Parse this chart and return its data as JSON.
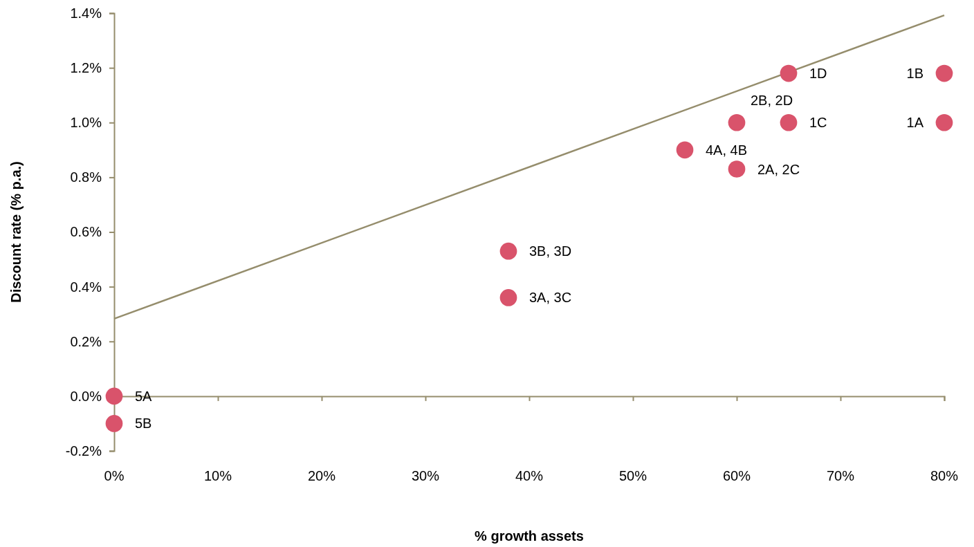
{
  "chart_data": {
    "type": "scatter",
    "xlabel": "% growth assets",
    "ylabel": "Discount rate (% p.a.)",
    "xlim": [
      0,
      80
    ],
    "ylim": [
      -0.2,
      1.4
    ],
    "xticks": [
      {
        "value": 0,
        "label": "0%"
      },
      {
        "value": 10,
        "label": "10%"
      },
      {
        "value": 20,
        "label": "20%"
      },
      {
        "value": 30,
        "label": "30%"
      },
      {
        "value": 40,
        "label": "40%"
      },
      {
        "value": 50,
        "label": "50%"
      },
      {
        "value": 60,
        "label": "60%"
      },
      {
        "value": 70,
        "label": "70%"
      },
      {
        "value": 80,
        "label": "80%"
      }
    ],
    "yticks": [
      {
        "value": -0.2,
        "label": "-0.2%"
      },
      {
        "value": 0,
        "label": "0.0%"
      },
      {
        "value": 0.2,
        "label": "0.2%"
      },
      {
        "value": 0.4,
        "label": "0.4%"
      },
      {
        "value": 0.6,
        "label": "0.6%"
      },
      {
        "value": 0.8,
        "label": "0.8%"
      },
      {
        "value": 1.0,
        "label": "1.0%"
      },
      {
        "value": 1.2,
        "label": "1.2%"
      },
      {
        "value": 1.4,
        "label": "1.4%"
      }
    ],
    "grid": false,
    "series": [
      {
        "color": "#d9536b",
        "marker": "circle",
        "x": [
          80,
          80,
          65,
          65,
          60,
          60,
          55,
          38,
          38,
          0,
          0
        ],
        "values": [
          1.0,
          1.18,
          1.0,
          1.18,
          0.83,
          1.0,
          0.9,
          0.36,
          0.53,
          0,
          -0.1
        ]
      },
      {
        "type": "line",
        "color": "#958d6c",
        "x": [
          0,
          80
        ],
        "values": [
          0.283,
          1.392
        ],
        "line_style": "solid",
        "marker": "none"
      }
    ],
    "annotations": [
      {
        "text": "1A",
        "x": 80,
        "y": 1.0
      },
      {
        "text": "1B",
        "x": 80,
        "y": 1.18
      },
      {
        "text": "1C",
        "x": 65,
        "y": 1.0
      },
      {
        "text": "1D",
        "x": 65,
        "y": 1.18
      },
      {
        "text": "2A, 2C",
        "x": 60,
        "y": 0.83
      },
      {
        "text": "2B, 2D",
        "x": 60,
        "y": 1.0
      },
      {
        "text": "4A, 4B",
        "x": 55,
        "y": 0.9
      },
      {
        "text": "3A, 3C",
        "x": 38,
        "y": 0.36
      },
      {
        "text": "3B, 3D",
        "x": 38,
        "y": 0.53
      },
      {
        "text": "5A",
        "x": 0,
        "y": 0
      },
      {
        "text": "5B",
        "x": 0,
        "y": -0.1
      }
    ]
  }
}
